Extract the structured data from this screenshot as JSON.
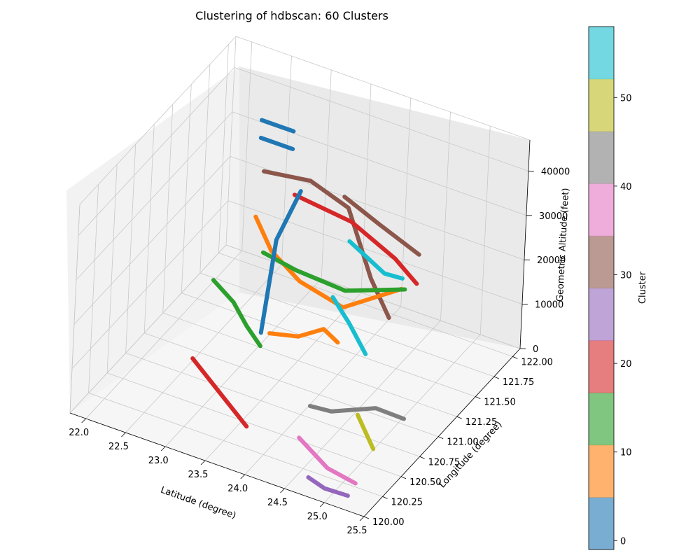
{
  "chart_data": {
    "type": "scatter",
    "projection": "3d",
    "title": "Clustering of hdbscan: 60 Clusters",
    "xlabel": "Latitude (degree)",
    "ylabel": "Longitude (degree)",
    "zlabel": "Geometric Altitude (feet)",
    "xlim": [
      21.8,
      25.5
    ],
    "ylim": [
      120.0,
      122.1
    ],
    "zlim": [
      0,
      47000
    ],
    "x_ticks": [
      "22.0",
      "22.5",
      "23.0",
      "23.5",
      "24.0",
      "24.5",
      "25.0",
      "25.5"
    ],
    "y_ticks": [
      "120.00",
      "120.25",
      "120.50",
      "120.75",
      "121.00",
      "121.25",
      "121.50",
      "121.75",
      "122.00"
    ],
    "z_ticks": [
      "0",
      "10000",
      "20000",
      "30000",
      "40000"
    ],
    "grid": true,
    "colorbar": {
      "label": "Cluster",
      "range": [
        -1,
        58
      ],
      "ticks": [
        "0",
        "10",
        "20",
        "30",
        "40",
        "50"
      ],
      "colors": [
        "#1f77b4",
        "#ff7f0e",
        "#2ca02c",
        "#d62728",
        "#9467bd",
        "#8c564b",
        "#e377c2",
        "#7f7f7f",
        "#bcbd22",
        "#17becf"
      ]
    },
    "series": [
      {
        "color": "#1f77b4",
        "points": [
          [
            22.3,
            121.95,
            34000
          ],
          [
            22.7,
            121.95,
            34000
          ]
        ]
      },
      {
        "color": "#1f77b4",
        "points": [
          [
            22.3,
            121.95,
            30000
          ],
          [
            22.7,
            121.95,
            30000
          ]
        ]
      },
      {
        "color": "#8c564b",
        "points": [
          [
            22.4,
            121.9,
            24000
          ],
          [
            23.0,
            121.88,
            26000
          ],
          [
            23.6,
            121.75,
            26000
          ],
          [
            24.4,
            121.2,
            25000
          ],
          [
            24.95,
            120.85,
            26000
          ]
        ]
      },
      {
        "color": "#d62728",
        "points": [
          [
            22.75,
            121.95,
            20000
          ],
          [
            23.6,
            121.8,
            22000
          ],
          [
            24.6,
            121.3,
            29000
          ],
          [
            25.1,
            121.05,
            31000
          ]
        ]
      },
      {
        "color": "#ff7f0e",
        "points": [
          [
            22.5,
            121.7,
            18000
          ],
          [
            22.8,
            121.6,
            14000
          ],
          [
            23.3,
            121.45,
            13000
          ],
          [
            24.2,
            121.05,
            20000
          ],
          [
            25.0,
            120.95,
            31000
          ]
        ]
      },
      {
        "color": "#2ca02c",
        "points": [
          [
            22.7,
            121.6,
            13000
          ],
          [
            23.2,
            121.5,
            14000
          ],
          [
            24.0,
            121.3,
            18000
          ],
          [
            25.0,
            121.0,
            30000
          ]
        ]
      },
      {
        "color": "#17becf",
        "points": [
          [
            24.2,
            120.9,
            25000
          ],
          [
            24.55,
            120.75,
            24000
          ],
          [
            24.9,
            120.6,
            22000
          ]
        ]
      },
      {
        "color": "#1f77b4",
        "points": [
          [
            23.0,
            121.75,
            26000
          ],
          [
            22.9,
            121.55,
            18000
          ],
          [
            23.2,
            121.05,
            8000
          ]
        ]
      },
      {
        "color": "#2ca02c",
        "points": [
          [
            22.1,
            121.6,
            3000
          ],
          [
            22.45,
            121.5,
            2000
          ],
          [
            22.8,
            121.3,
            2500
          ],
          [
            23.2,
            121.05,
            5000
          ]
        ]
      },
      {
        "color": "#d62728",
        "points": [
          [
            22.5,
            120.9,
            500
          ],
          [
            23.1,
            120.65,
            500
          ],
          [
            23.6,
            120.45,
            200
          ]
        ]
      },
      {
        "color": "#ff7f0e",
        "points": [
          [
            23.0,
            121.4,
            300
          ],
          [
            23.4,
            121.35,
            3000
          ],
          [
            23.8,
            121.25,
            9000
          ],
          [
            24.2,
            121.0,
            13000
          ]
        ]
      },
      {
        "color": "#7f7f7f",
        "points": [
          [
            24.2,
            120.65,
            5000
          ],
          [
            24.6,
            120.5,
            9000
          ],
          [
            25.1,
            120.55,
            12000
          ],
          [
            25.5,
            120.5,
            13000
          ]
        ]
      },
      {
        "color": "#e377c2",
        "points": [
          [
            24.3,
            120.4,
            3000
          ],
          [
            24.8,
            120.25,
            2000
          ],
          [
            25.2,
            120.2,
            2000
          ]
        ]
      },
      {
        "color": "#9467bd",
        "points": [
          [
            24.7,
            120.1,
            2000
          ],
          [
            24.95,
            120.05,
            2000
          ],
          [
            25.2,
            120.1,
            1000
          ]
        ]
      },
      {
        "color": "#bcbd22",
        "points": [
          [
            25.1,
            120.3,
            15000
          ],
          [
            25.4,
            120.2,
            11000
          ]
        ]
      },
      {
        "color": "#8c564b",
        "points": [
          [
            23.5,
            121.8,
            27000
          ],
          [
            24.3,
            121.4,
            33000
          ],
          [
            25.2,
            120.95,
            40000
          ]
        ]
      },
      {
        "color": "#17becf",
        "points": [
          [
            24.2,
            121.1,
            34000
          ],
          [
            25.0,
            120.7,
            39000
          ],
          [
            25.4,
            120.5,
            44000
          ]
        ]
      }
    ]
  }
}
